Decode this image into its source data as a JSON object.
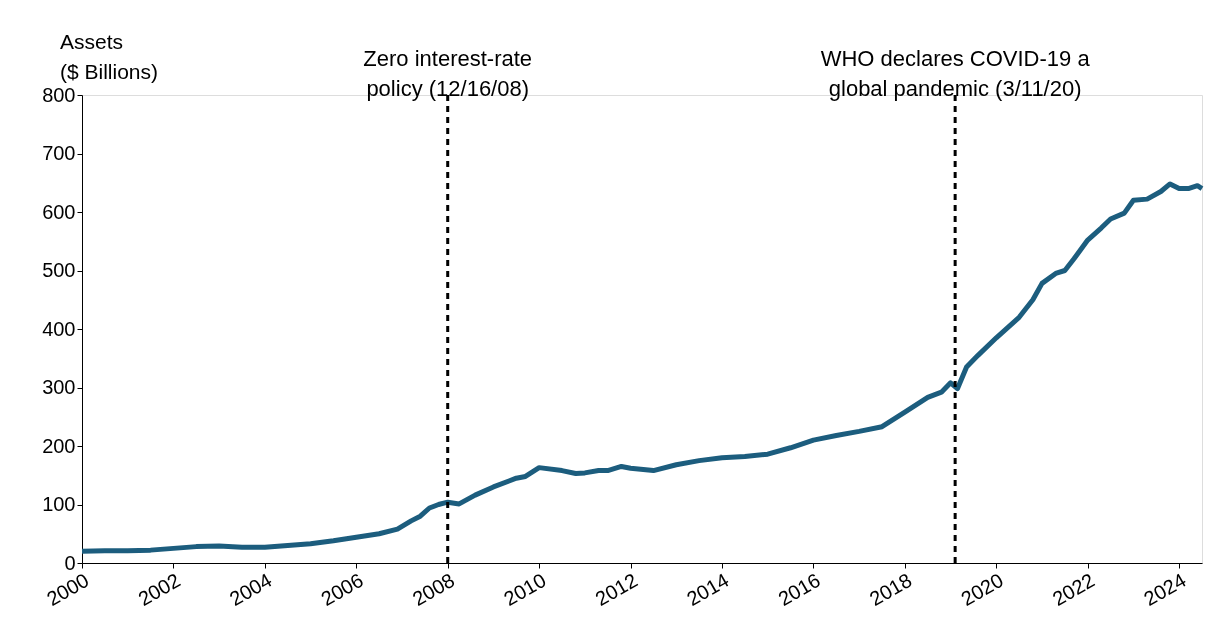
{
  "chart_data": {
    "type": "line",
    "ylabel": "Assets\n($ Billions)",
    "x": [
      2000.0,
      2000.5,
      2001.0,
      2001.5,
      2002.0,
      2002.5,
      2003.0,
      2003.5,
      2004.0,
      2004.5,
      2005.0,
      2005.5,
      2006.0,
      2006.5,
      2006.9,
      2007.2,
      2007.4,
      2007.6,
      2007.8,
      2008.0,
      2008.25,
      2008.6,
      2009.0,
      2009.5,
      2009.7,
      2010.0,
      2010.5,
      2010.8,
      2011.0,
      2011.3,
      2011.5,
      2011.8,
      2012.0,
      2012.5,
      2013.0,
      2013.5,
      2014.0,
      2014.5,
      2015.0,
      2015.5,
      2016.0,
      2016.5,
      2017.0,
      2017.5,
      2018.0,
      2018.5,
      2018.8,
      2019.0,
      2019.15,
      2019.35,
      2019.6,
      2020.0,
      2020.5,
      2020.8,
      2021.0,
      2021.3,
      2021.5,
      2021.7,
      2022.0,
      2022.3,
      2022.5,
      2022.8,
      2023.0,
      2023.3,
      2023.6,
      2023.8,
      2024.0,
      2024.2,
      2024.4,
      2024.5
    ],
    "series": [
      {
        "color": "#1c5d7e",
        "values": [
          20,
          21,
          21,
          22,
          25,
          28,
          29,
          27,
          27,
          30,
          33,
          38,
          44,
          50,
          58,
          72,
          80,
          94,
          100,
          104,
          101,
          116,
          130,
          145,
          148,
          163,
          158,
          153,
          154,
          158,
          158,
          165,
          162,
          158,
          168,
          175,
          180,
          182,
          186,
          197,
          210,
          218,
          225,
          233,
          258,
          283,
          292,
          308,
          298,
          335,
          355,
          385,
          420,
          450,
          478,
          495,
          500,
          520,
          552,
          573,
          588,
          598,
          620,
          622,
          635,
          648,
          640,
          640,
          645,
          640
        ]
      }
    ],
    "xlim": [
      2000,
      2024.5
    ],
    "xticks": [
      2000,
      2002,
      2004,
      2006,
      2008,
      2010,
      2012,
      2014,
      2016,
      2018,
      2020,
      2022,
      2024
    ],
    "ylim": [
      0,
      800
    ],
    "yticks": [
      0,
      100,
      200,
      300,
      400,
      500,
      600,
      700,
      800
    ],
    "ref_lines": [
      {
        "axis": "x",
        "value": 2008.0,
        "label": "Zero interest-rate\npolicy (12/16/08)",
        "color": "#000000",
        "line_style": "dashed"
      },
      {
        "axis": "x",
        "value": 2019.1,
        "label": "WHO declares COVID-19 a\nglobal pandemic (3/11/20)",
        "color": "#000000",
        "line_style": "dashed"
      }
    ],
    "grid": false,
    "marker": "none",
    "line_style": "solid"
  }
}
